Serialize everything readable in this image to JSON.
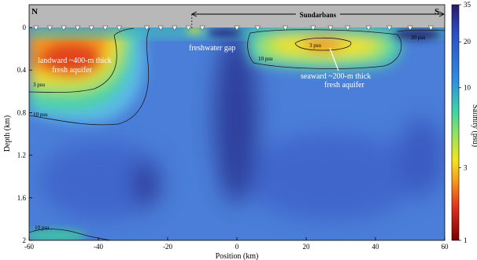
{
  "chart_data": {
    "type": "heatmap",
    "xlabel": "Position (km)",
    "ylabel": "Depth (km)",
    "xlim": [
      -60,
      60
    ],
    "ylim": [
      2,
      0
    ],
    "x_ticks": [
      "-60",
      "-40",
      "-20",
      "0",
      "20",
      "40",
      "60"
    ],
    "y_ticks": [
      "0",
      "0.4",
      "0.8",
      "1.2",
      "1.6",
      "2"
    ],
    "colorbar": {
      "label": "Salinity (psu)",
      "scale": "log",
      "range": [
        1,
        35
      ],
      "ticks": [
        "35",
        "20",
        "10",
        "3",
        "1"
      ],
      "colors": [
        "#7a0000",
        "#e0301c",
        "#f7a11c",
        "#f4e51c",
        "#9be35a",
        "#3fd3a8",
        "#2f8de3",
        "#2b4fc4",
        "#2a1a66"
      ]
    },
    "direction_labels": {
      "north": "N",
      "south": "S"
    },
    "region_bar": {
      "label": "Sundarbans",
      "x_start": -13,
      "x_end": 60
    },
    "station_markers_x": [
      -58,
      -54,
      -50,
      -46,
      -42,
      -38,
      -34,
      -26,
      -22,
      -18,
      -14,
      -10,
      0,
      6,
      14,
      22,
      27,
      32,
      38,
      44,
      50,
      56
    ],
    "annotations": {
      "landward_aquifer": [
        "landward ~400-m thick",
        "fresh aquifer"
      ],
      "freshwater_gap": "freshwater gap",
      "seaward_aquifer": [
        "seaward ~200-m thick",
        "fresh aquifer"
      ]
    },
    "contour_labels": [
      "3 psu",
      "10 psu",
      "3 psu",
      "10 psu",
      "30 psu",
      "10 psu"
    ]
  }
}
